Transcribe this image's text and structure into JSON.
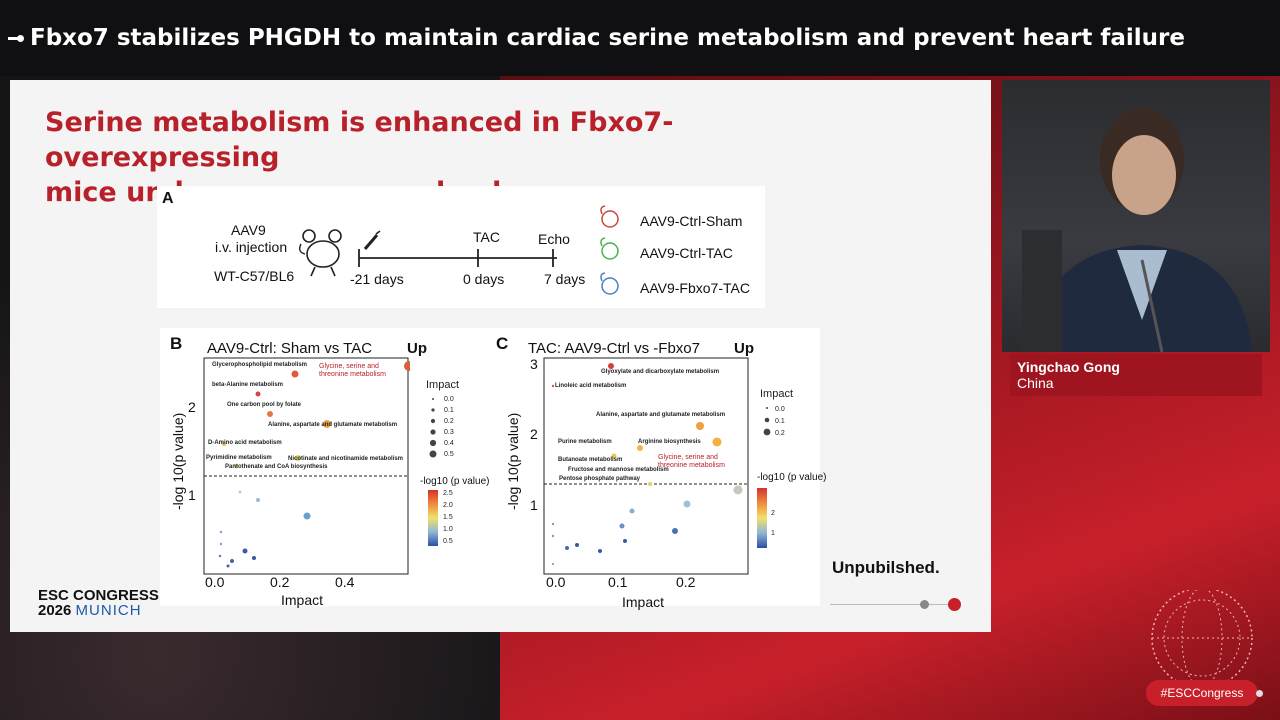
{
  "header": {
    "title": "Fbxo7 stabilizes PHGDH to maintain cardiac serine metabolism and prevent heart failure"
  },
  "slide": {
    "title_line1": "Serine metabolism is enhanced in Fbxo7-overexpressing",
    "title_line2": "mice under pressure overload.",
    "panel_a": {
      "label": "A",
      "aav9": "AAV9",
      "injection": "i.v. injection",
      "strain": "WT-C57/BL6",
      "tac": "TAC",
      "echo": "Echo",
      "t1": "-21 days",
      "t2": "0 days",
      "t3": "7 days",
      "groups": [
        "AAV9-Ctrl-Sham",
        "AAV9-Ctrl-TAC",
        "AAV9-Fbxo7-TAC"
      ],
      "group_colors": [
        "#c8473a",
        "#4caf50",
        "#4a7fc8"
      ]
    },
    "panel_b": {
      "label": "B",
      "title": "AAV9-Ctrl:   Sham vs TAC",
      "up": "Up",
      "ylabel": "-log 10(p value)",
      "xlabel": "Impact",
      "xticks": [
        "0.0",
        "0.2",
        "0.4"
      ],
      "yticks": [
        "1",
        "2"
      ],
      "highlight": [
        "Glycine, serine and",
        "threonine metabolism"
      ],
      "pathways": [
        "Glycerophospholipid metabolism",
        "beta-Alanine metabolism",
        "One carbon pool by folate",
        "Alanine, aspartate and glutamate metabolism",
        "D-Amino acid metabolism",
        "Pyrimidine metabolism",
        "Nicotinate and nicotinamide metabolism",
        "Pantothenate and CoA biosynthesis"
      ],
      "impact_title": "Impact",
      "impact_levels": [
        "0.0",
        "0.1",
        "0.2",
        "0.3",
        "0.4",
        "0.5"
      ],
      "color_title": "-log10 (p value)",
      "color_ticks": [
        "2.5",
        "2.0",
        "1.5",
        "1.0",
        "0.5"
      ]
    },
    "panel_c": {
      "label": "C",
      "title": "TAC:   AAV9-Ctrl vs -Fbxo7",
      "up": "Up",
      "ylabel": "-log 10(p value)",
      "xlabel": "Impact",
      "xticks": [
        "0.0",
        "0.1",
        "0.2"
      ],
      "yticks": [
        "1",
        "2",
        "3"
      ],
      "highlight": [
        "Glycine, serine and",
        "threonine metabolism"
      ],
      "pathways": [
        "Glyoxylate and dicarboxylate metabolism",
        "Linoleic acid metabolism",
        "Alanine, aspartate and glutamate metabolism",
        "Purine metabolism",
        "Arginine biosynthesis",
        "Butanoate metabolism",
        "Fructose and mannose metabolism",
        "Pentose phosphate pathway"
      ],
      "impact_title": "Impact",
      "impact_levels": [
        "0.0",
        "0.1",
        "0.2"
      ],
      "color_title": "-log10 (p value)",
      "color_ticks": [
        "2",
        "1"
      ]
    },
    "unpublished": "Unpubilshed.",
    "logo_line1": "ESC CONGRESS",
    "logo_line2_a": "2026",
    "logo_line2_b": "MUNICH"
  },
  "speaker": {
    "name": "Yingchao Gong",
    "country": "China"
  },
  "hashtag": "#ESCCongress",
  "colors": {
    "brand_red": "#c8202b",
    "title_red": "#b8202a"
  }
}
